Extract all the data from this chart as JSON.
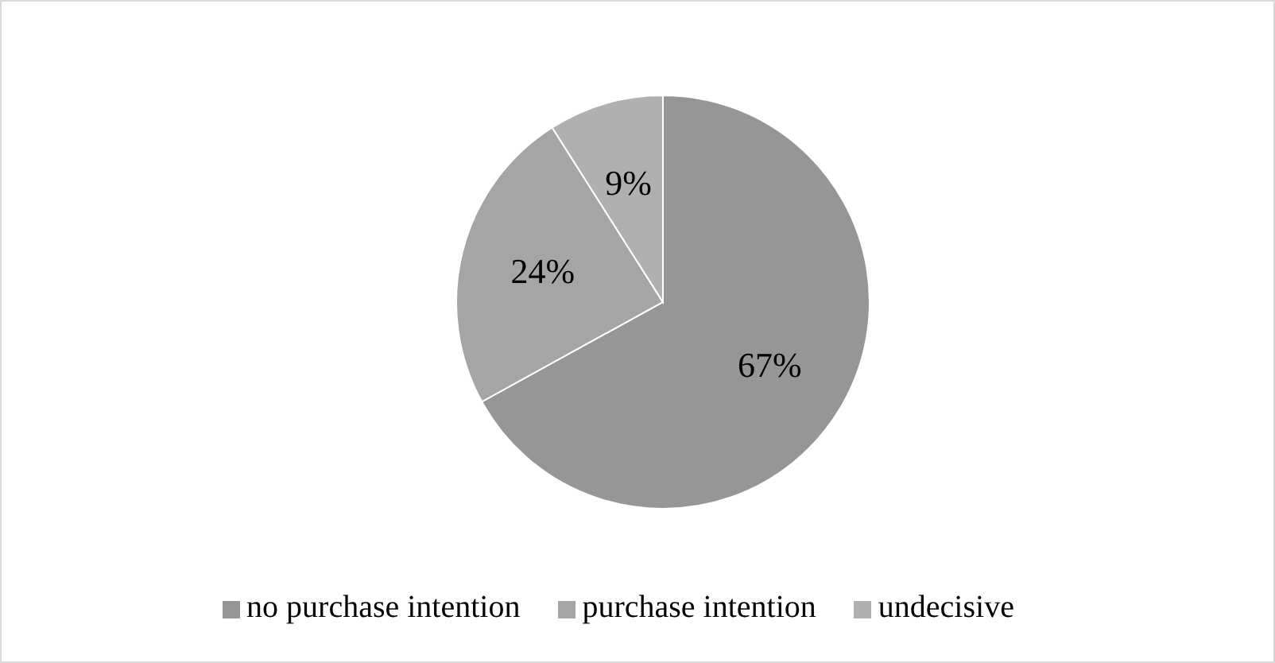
{
  "chart_data": {
    "type": "pie",
    "categories": [
      "no purchase intention",
      "purchase intention",
      "undecisive"
    ],
    "values": [
      67,
      24,
      9
    ],
    "colors": [
      "#969696",
      "#a5a5a5",
      "#b0b0b0"
    ],
    "value_labels": [
      "67%",
      "24%",
      "9%"
    ],
    "legend": "bottom"
  }
}
